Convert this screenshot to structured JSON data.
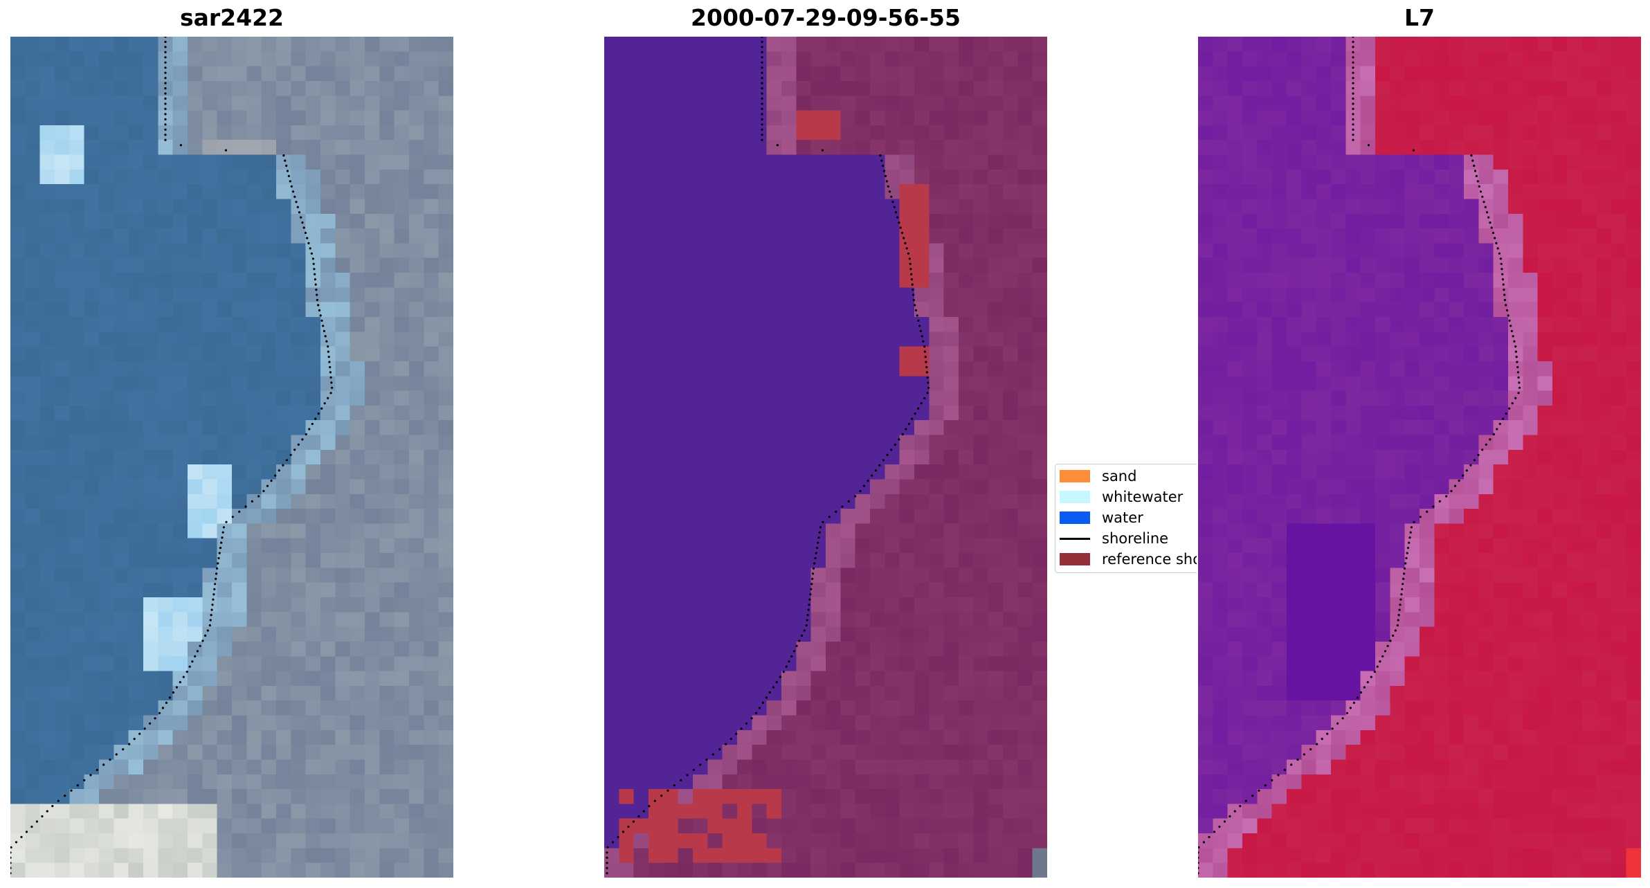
{
  "panels": [
    {
      "title": "sar2422",
      "kind": "rgb"
    },
    {
      "title": "2000-07-29-09-56-55",
      "kind": "classified"
    },
    {
      "title": "L7",
      "kind": "index"
    }
  ],
  "legend": {
    "items": [
      {
        "label": "sand",
        "type": "patch",
        "color": "#ff8c3a"
      },
      {
        "label": "whitewater",
        "type": "patch",
        "color": "#c8f8ff"
      },
      {
        "label": "water",
        "type": "patch",
        "color": "#0a5cf0"
      },
      {
        "label": "shoreline",
        "type": "line",
        "color": "#000000"
      },
      {
        "label": "reference shoreline",
        "type": "patch",
        "color": "#93303a"
      }
    ]
  },
  "colors": {
    "water_class": "#532496",
    "land_class": "#7a2a60",
    "sand_patch": "#b83a4a",
    "index_low": "#5a0aa0",
    "index_high": "#c81846",
    "rgb_water": "#3c6b96",
    "rgb_land": "#8a98a8"
  }
}
